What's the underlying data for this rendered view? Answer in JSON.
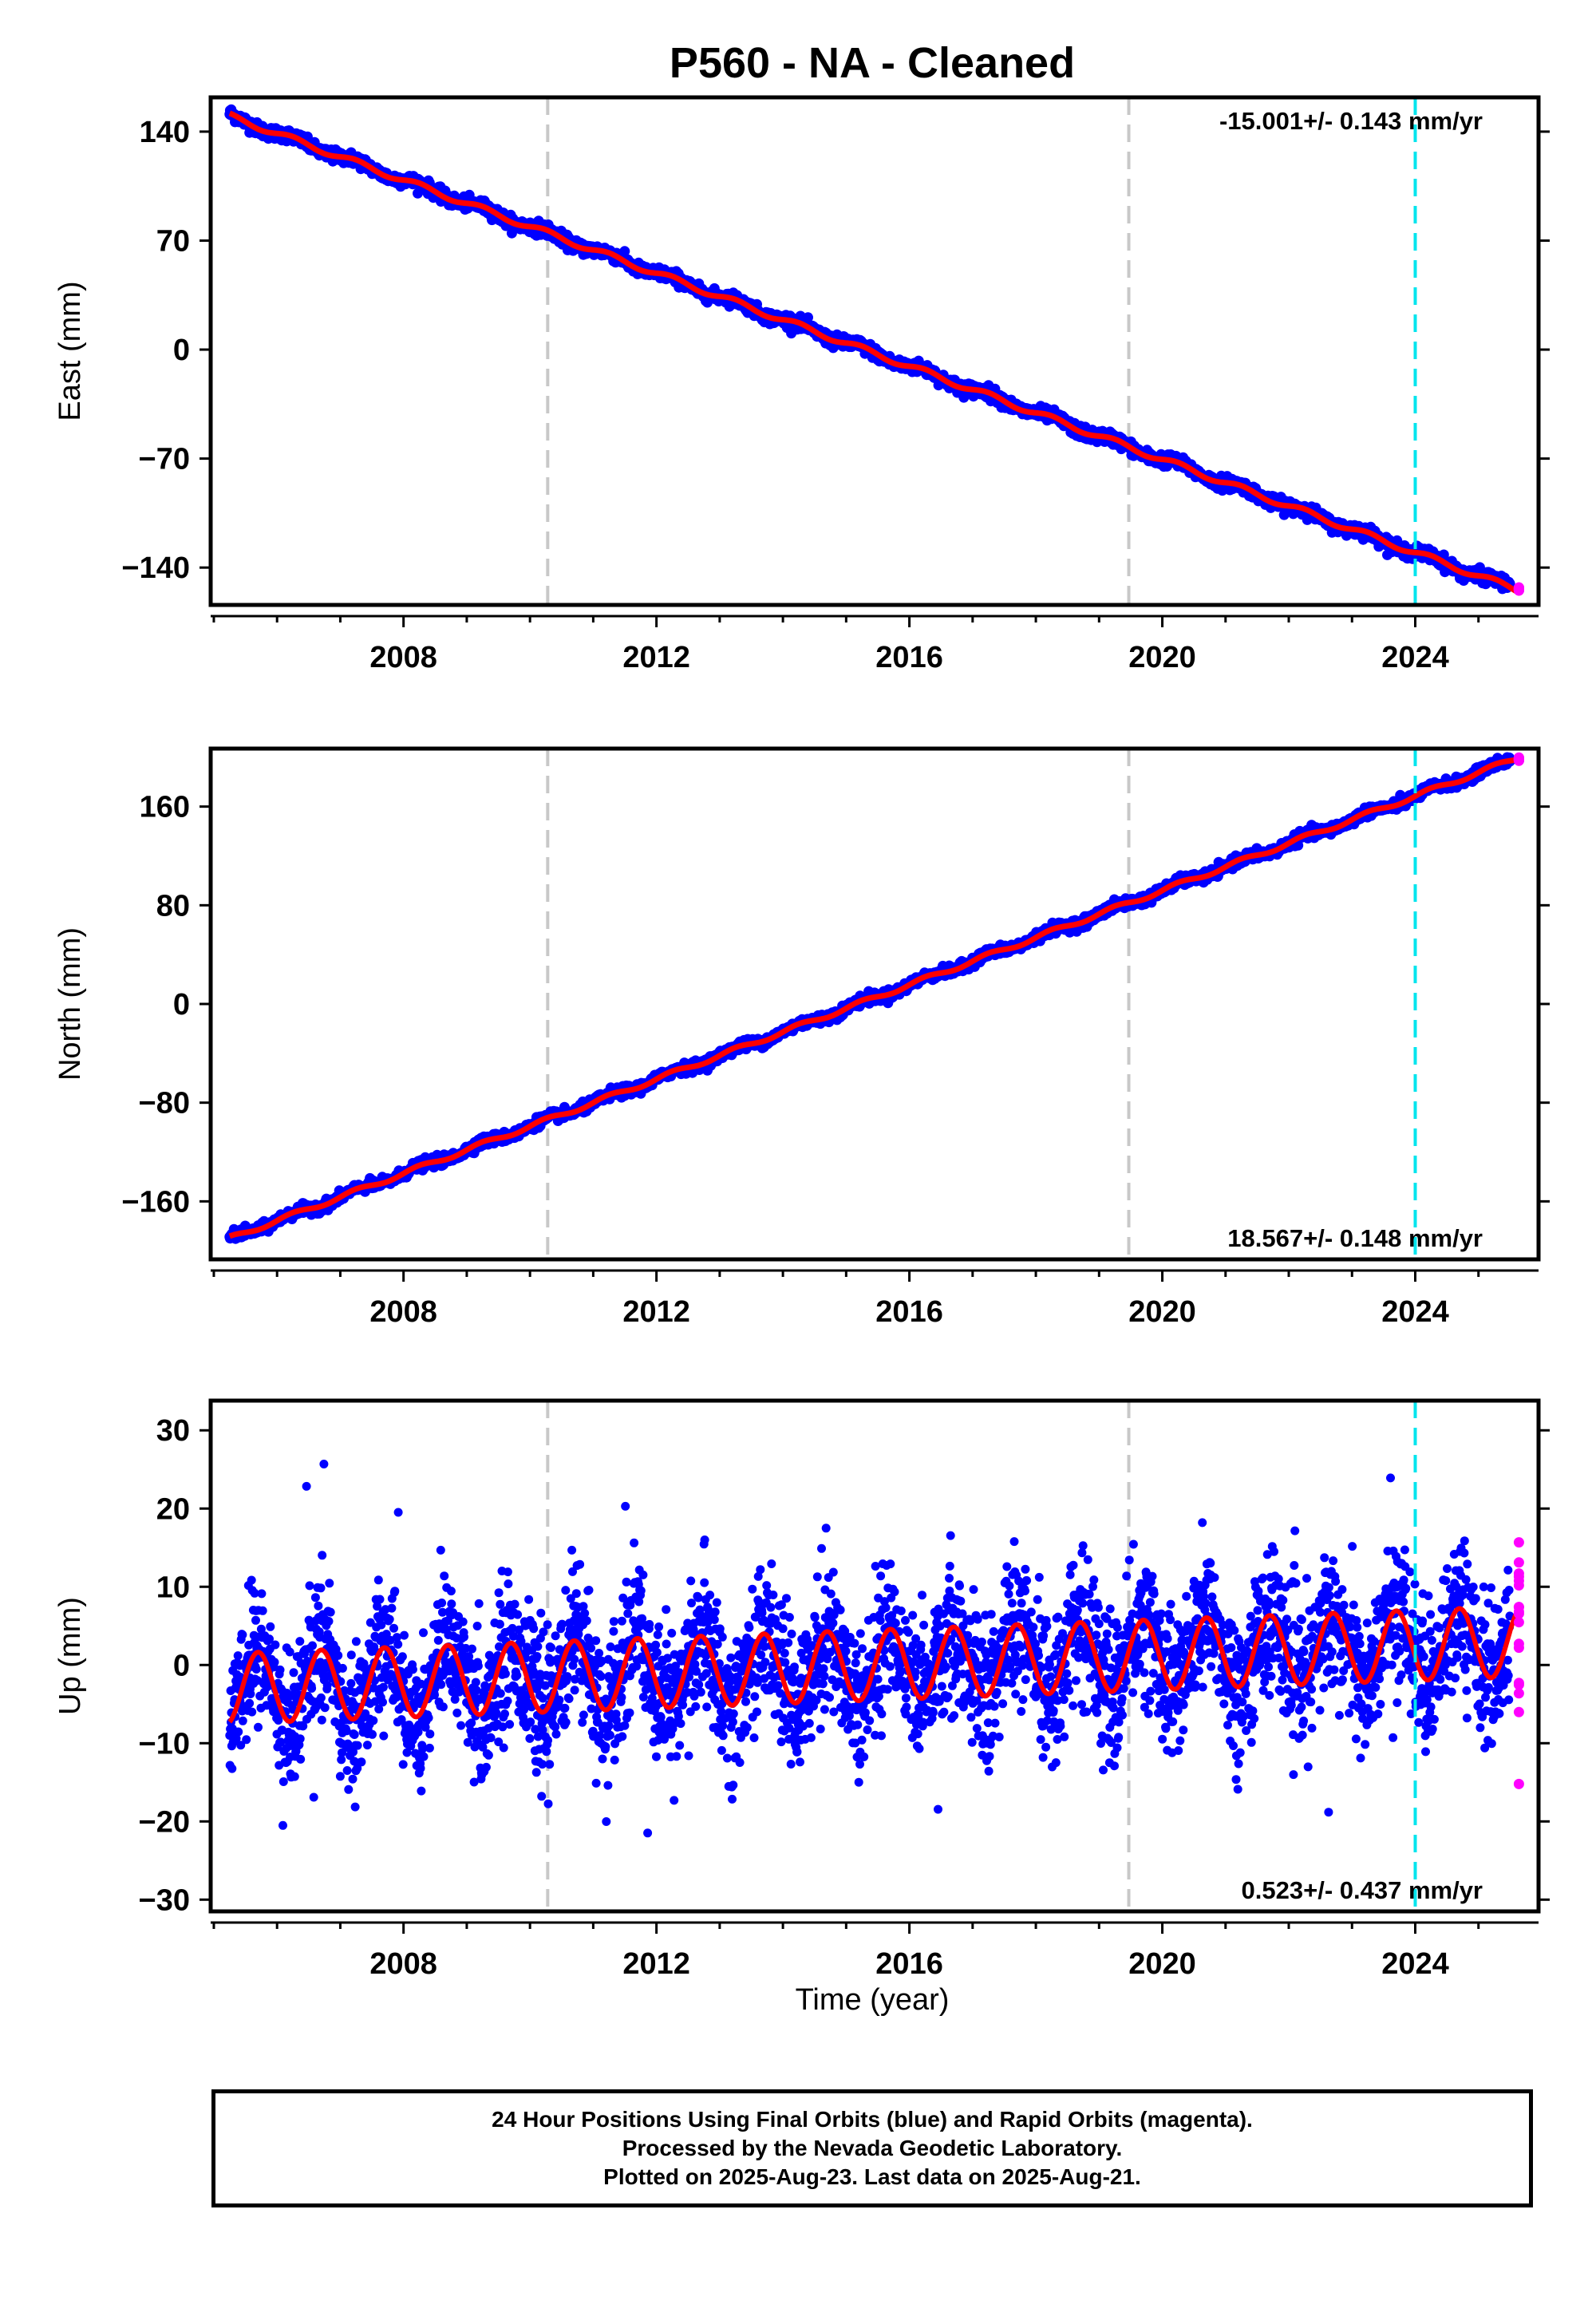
{
  "title": "P560  - NA - Cleaned",
  "colors": {
    "final_orbits": "#0000ff",
    "rapid_orbits": "#ff00ff",
    "model": "#ff0000",
    "equipment_change": "#c8c8c8",
    "event_marker": "#00e5ee"
  },
  "chart_data": [
    {
      "type": "scatter",
      "ylabel": "East (mm)",
      "x_ticks": [
        "2008",
        "2012",
        "2016",
        "2020",
        "2024"
      ],
      "y_ticks": [
        "140",
        "70",
        "0",
        "−70",
        "−140"
      ],
      "ylim": [
        -164,
        162
      ],
      "xlim": [
        2004.95,
        2025.95
      ],
      "velocity_label": "-15.001+/- 0.143 mm/yr",
      "velocity_mm_per_yr": -15.001,
      "trend_points": [
        [
          2005.25,
          150
        ],
        [
          2025.65,
          -155
        ]
      ],
      "equipment_changes": [
        2010.28,
        2019.47
      ],
      "event_marker": 2024.0,
      "rapid_orbits_range": [
        2025.5,
        2025.64
      ]
    },
    {
      "type": "scatter",
      "ylabel": "North (mm)",
      "x_ticks": [
        "2008",
        "2012",
        "2016",
        "2020",
        "2024"
      ],
      "y_ticks": [
        "160",
        "80",
        "0",
        "−80",
        "−160"
      ],
      "ylim": [
        -207,
        207
      ],
      "xlim": [
        2004.95,
        2025.95
      ],
      "velocity_label": "18.567+/- 0.148 mm/yr",
      "velocity_mm_per_yr": 18.567,
      "trend_points": [
        [
          2005.25,
          -190
        ],
        [
          2025.65,
          200
        ]
      ],
      "equipment_changes": [
        2010.28,
        2019.47
      ],
      "event_marker": 2024.0,
      "rapid_orbits_range": [
        2025.5,
        2025.64
      ]
    },
    {
      "type": "scatter",
      "ylabel": "Up (mm)",
      "x_ticks": [
        "2008",
        "2012",
        "2016",
        "2020",
        "2024"
      ],
      "y_ticks": [
        "30",
        "20",
        "10",
        "0",
        "−10",
        "−20",
        "−30"
      ],
      "ylim": [
        -31.5,
        33.8
      ],
      "xlim": [
        2004.95,
        2025.95
      ],
      "velocity_label": "0.523+/- 0.437 mm/yr",
      "velocity_mm_per_yr": 0.523,
      "seasonal_amplitude_mm": 4.5,
      "trend_points": [
        [
          2005.25,
          -3
        ],
        [
          2025.65,
          3
        ]
      ],
      "equipment_changes": [
        2010.28,
        2019.47
      ],
      "event_marker": 2024.0,
      "rapid_orbits_range": [
        2025.5,
        2025.64
      ]
    }
  ],
  "xlabel": "Time (year)",
  "footer": {
    "line1": "24 Hour Positions Using Final Orbits (blue) and Rapid Orbits (magenta).",
    "line2": "Processed by the Nevada Geodetic Laboratory.",
    "line3": "Plotted on 2025-Aug-23. Last data on 2025-Aug-21."
  }
}
